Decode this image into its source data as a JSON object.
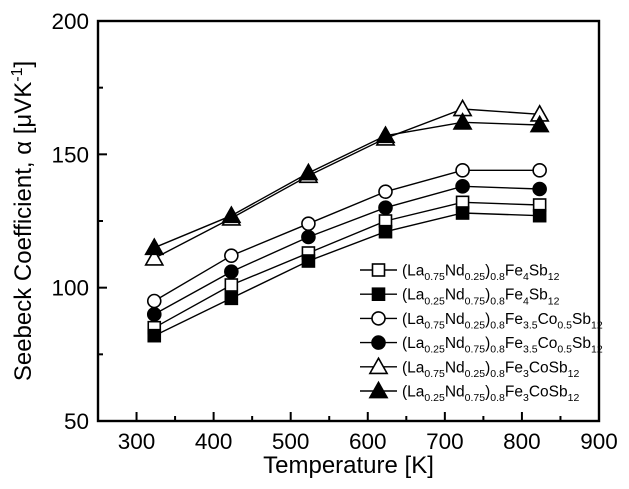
{
  "chart_data": {
    "type": "line",
    "title": "",
    "xlabel": "Temperature [K]",
    "ylabel": "Seebeck Coefficient, α [μVK^{-1}]",
    "xlim": [
      250,
      900
    ],
    "ylim": [
      50,
      200
    ],
    "x_major_ticks": [
      300,
      400,
      500,
      600,
      700,
      800,
      900
    ],
    "x_minor_ticks": [
      350,
      450,
      550,
      650,
      750,
      850
    ],
    "y_major_ticks": [
      50,
      100,
      150,
      200
    ],
    "y_minor_ticks": [
      75,
      125,
      175
    ],
    "grid": false,
    "tick_direction": "in",
    "legend_position": "inside-lower-right",
    "colors": {
      "foreground": "#000000",
      "background": "#ffffff"
    },
    "x": [
      323,
      423,
      523,
      623,
      723,
      823
    ],
    "series": [
      {
        "name": "(La_{0.75}Nd_{0.25})_{0.8}Fe_{4}Sb_{12}",
        "marker": "open-square",
        "values": [
          85,
          101,
          113,
          125,
          132,
          131
        ]
      },
      {
        "name": "(La_{0.25}Nd_{0.75})_{0.8}Fe_{4}Sb_{12}",
        "marker": "filled-square",
        "values": [
          82,
          96,
          110,
          121,
          128,
          127
        ]
      },
      {
        "name": "(La_{0.75}Nd_{0.25})_{0.8}Fe_{3.5}Co_{0.5}Sb_{12}",
        "marker": "open-circle",
        "values": [
          95,
          112,
          124,
          136,
          144,
          144
        ]
      },
      {
        "name": "(La_{0.25}Nd_{0.75})_{0.8}Fe_{3.5}Co_{0.5}Sb_{12}",
        "marker": "filled-circle",
        "values": [
          90,
          106,
          119,
          130,
          138,
          137
        ]
      },
      {
        "name": "(La_{0.75}Nd_{0.25})_{0.8}Fe_{3}CoSb_{12}",
        "marker": "open-triangle",
        "values": [
          111,
          126,
          142,
          156,
          167,
          165
        ]
      },
      {
        "name": "(La_{0.25}Nd_{0.75})_{0.8}Fe_{3}CoSb_{12}",
        "marker": "filled-triangle",
        "values": [
          115,
          127,
          143,
          157,
          162,
          161
        ]
      }
    ]
  }
}
